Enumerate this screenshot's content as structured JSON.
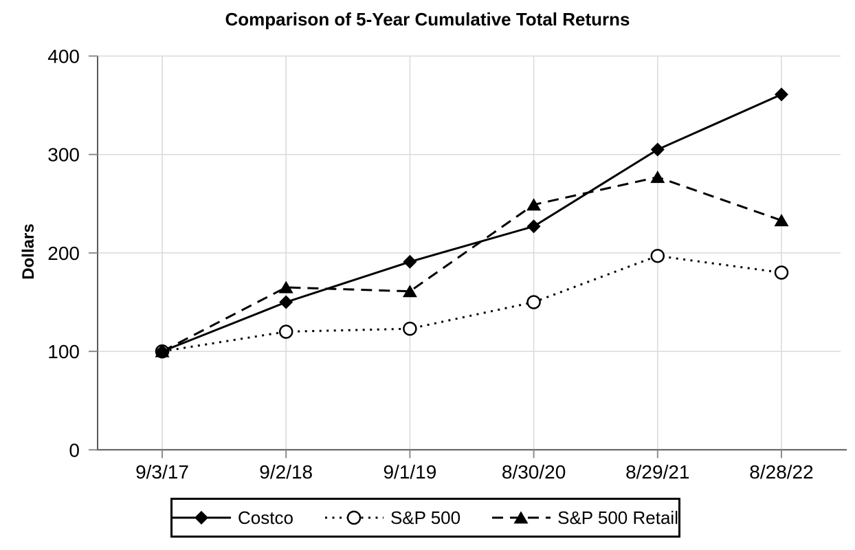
{
  "title": "Comparison of 5-Year Cumulative Total Returns",
  "y_axis_title": "Dollars",
  "colors": {
    "series_line": "#000000",
    "gridline": "#d9d9d9",
    "axis_line": "#595959",
    "tick_mark": "#8c8c8c",
    "text": "#000000",
    "background": "#ffffff",
    "legend_border": "#000000"
  },
  "chart_data": {
    "type": "line",
    "title": "Comparison of 5-Year Cumulative Total Returns",
    "xlabel": "",
    "ylabel": "Dollars",
    "categories": [
      "9/3/17",
      "9/2/18",
      "9/1/19",
      "8/30/20",
      "8/29/21",
      "8/28/22"
    ],
    "yticks": [
      0,
      100,
      200,
      300,
      400
    ],
    "ylim": [
      0,
      400
    ],
    "grid": "on",
    "legend_position": "bottom",
    "series": [
      {
        "name": "Costco",
        "line_style": "solid",
        "marker": "filled-diamond",
        "values": [
          100,
          150,
          191,
          227,
          305,
          361
        ]
      },
      {
        "name": "S&P 500",
        "line_style": "dotted",
        "marker": "open-circle",
        "values": [
          100,
          120,
          123,
          150,
          197,
          180
        ]
      },
      {
        "name": "S&P 500 Retail",
        "line_style": "dashed",
        "marker": "filled-triangle",
        "values": [
          100,
          165,
          161,
          249,
          277,
          233
        ]
      }
    ]
  }
}
